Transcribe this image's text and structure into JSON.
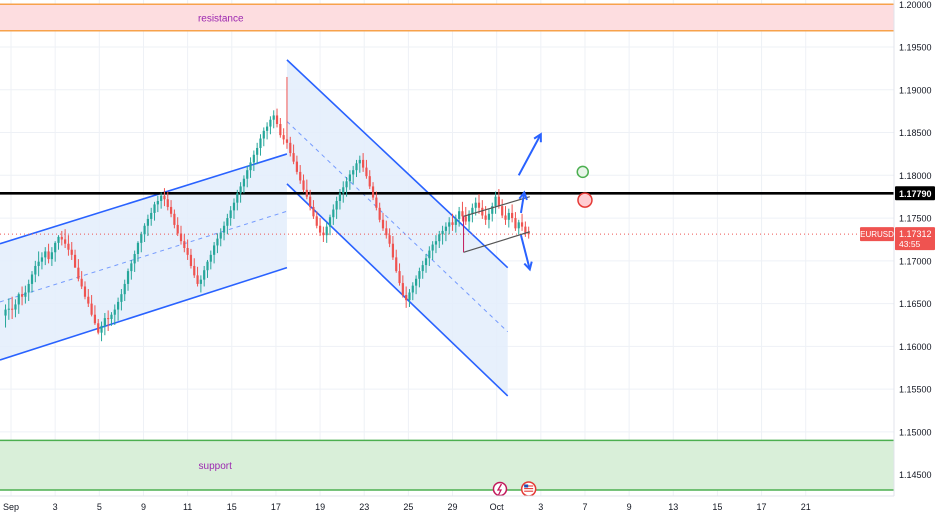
{
  "chart_data": {
    "type": "candlestick",
    "symbol": "EURUSD",
    "last_price": "1.17312",
    "countdown": "43:55",
    "level_label": "1.17790",
    "level": 1.1779,
    "ylim": [
      1.1425,
      1.2005
    ],
    "xlim": [
      -1.0,
      80.0
    ],
    "y_ticks": [
      "1.14500",
      "1.15000",
      "1.15500",
      "1.16000",
      "1.16500",
      "1.17000",
      "1.17500",
      "1.18000",
      "1.18500",
      "1.19000",
      "1.19500",
      "1.20000"
    ],
    "x_ticks": [
      {
        "label": "Sep",
        "x": 0.0
      },
      {
        "label": "3",
        "x": 4.0
      },
      {
        "label": "5",
        "x": 8.0
      },
      {
        "label": "9",
        "x": 12.0
      },
      {
        "label": "11",
        "x": 16.0
      },
      {
        "label": "15",
        "x": 20.0
      },
      {
        "label": "17",
        "x": 24.0
      },
      {
        "label": "19",
        "x": 28.0
      },
      {
        "label": "23",
        "x": 32.0
      },
      {
        "label": "25",
        "x": 36.0
      },
      {
        "label": "29",
        "x": 40.0
      },
      {
        "label": "Oct",
        "x": 44.0
      },
      {
        "label": "3",
        "x": 48.0
      },
      {
        "label": "7",
        "x": 52.0
      },
      {
        "label": "9",
        "x": 56.0
      },
      {
        "label": "13",
        "x": 60.0
      },
      {
        "label": "15",
        "x": 64.0
      },
      {
        "label": "17",
        "x": 68.0
      },
      {
        "label": "21",
        "x": 72.0
      }
    ],
    "zones": [
      {
        "label": "resistance",
        "from": 1.1969,
        "to": 1.2,
        "fill": "#fddde0",
        "border": "#f7a24b"
      },
      {
        "label": "support",
        "from": 1.1432,
        "to": 1.149,
        "fill": "#d9efd9",
        "border": "#4caf50"
      }
    ],
    "candles": [
      [
        -0.5,
        1.1636,
        1.1649,
        1.1622,
        1.1643
      ],
      [
        -0.2,
        1.1643,
        1.1656,
        1.1631,
        1.1644
      ],
      [
        0.1,
        1.1644,
        1.1658,
        1.1632,
        1.1643
      ],
      [
        0.4,
        1.1643,
        1.1655,
        1.1634,
        1.1649
      ],
      [
        0.7,
        1.1649,
        1.1663,
        1.1638,
        1.1661
      ],
      [
        1.0,
        1.1661,
        1.167,
        1.1648,
        1.1658
      ],
      [
        1.3,
        1.1658,
        1.1671,
        1.165,
        1.1663
      ],
      [
        1.6,
        1.1663,
        1.1678,
        1.1653,
        1.1673
      ],
      [
        1.9,
        1.1673,
        1.1688,
        1.1663,
        1.1684
      ],
      [
        2.2,
        1.1684,
        1.17,
        1.1675,
        1.1694
      ],
      [
        2.5,
        1.1694,
        1.1711,
        1.1682,
        1.1699
      ],
      [
        2.8,
        1.1699,
        1.171,
        1.169,
        1.1704
      ],
      [
        3.1,
        1.1704,
        1.1716,
        1.1695,
        1.1711
      ],
      [
        3.4,
        1.1711,
        1.172,
        1.1697,
        1.1702
      ],
      [
        3.7,
        1.1702,
        1.1716,
        1.1694,
        1.171
      ],
      [
        4.0,
        1.171,
        1.1723,
        1.1699,
        1.1721
      ],
      [
        4.3,
        1.1721,
        1.173,
        1.1713,
        1.1728
      ],
      [
        4.6,
        1.1728,
        1.1735,
        1.1718,
        1.1725
      ],
      [
        4.9,
        1.1725,
        1.1737,
        1.1715,
        1.172
      ],
      [
        5.2,
        1.172,
        1.173,
        1.1706,
        1.1713
      ],
      [
        5.5,
        1.1713,
        1.1722,
        1.1701,
        1.1707
      ],
      [
        5.8,
        1.1707,
        1.1713,
        1.1692,
        1.1692
      ],
      [
        6.1,
        1.1692,
        1.1702,
        1.1676,
        1.1679
      ],
      [
        6.4,
        1.1679,
        1.1688,
        1.1667,
        1.167
      ],
      [
        6.7,
        1.167,
        1.1676,
        1.1655,
        1.1658
      ],
      [
        7.0,
        1.1658,
        1.1667,
        1.1646,
        1.165
      ],
      [
        7.3,
        1.165,
        1.166,
        1.1635,
        1.1637
      ],
      [
        7.6,
        1.1637,
        1.1648,
        1.1625,
        1.1627
      ],
      [
        7.9,
        1.1627,
        1.1632,
        1.1614,
        1.1616
      ],
      [
        8.2,
        1.1616,
        1.1629,
        1.1606,
        1.1624
      ],
      [
        8.5,
        1.1624,
        1.1639,
        1.1613,
        1.1633
      ],
      [
        8.8,
        1.1633,
        1.1642,
        1.1618,
        1.1632
      ],
      [
        9.1,
        1.1632,
        1.164,
        1.1624,
        1.1637
      ],
      [
        9.4,
        1.1637,
        1.1649,
        1.1625,
        1.1643
      ],
      [
        9.7,
        1.1643,
        1.1657,
        1.163,
        1.1652
      ],
      [
        10.0,
        1.1652,
        1.1667,
        1.1642,
        1.1661
      ],
      [
        10.3,
        1.1661,
        1.1678,
        1.1653,
        1.1673
      ],
      [
        10.6,
        1.1673,
        1.1691,
        1.1665,
        1.1688
      ],
      [
        10.9,
        1.1688,
        1.1701,
        1.1678,
        1.1697
      ],
      [
        11.2,
        1.1697,
        1.1712,
        1.1687,
        1.1708
      ],
      [
        11.5,
        1.1708,
        1.1723,
        1.1699,
        1.1721
      ],
      [
        11.8,
        1.1721,
        1.1734,
        1.171,
        1.1731
      ],
      [
        12.1,
        1.1731,
        1.1744,
        1.1722,
        1.1741
      ],
      [
        12.4,
        1.1741,
        1.1754,
        1.1729,
        1.1749
      ],
      [
        12.7,
        1.1749,
        1.1762,
        1.1741,
        1.1756
      ],
      [
        13.0,
        1.1756,
        1.1769,
        1.1747,
        1.1766
      ],
      [
        13.3,
        1.1766,
        1.1776,
        1.1757,
        1.177
      ],
      [
        13.6,
        1.177,
        1.178,
        1.1761,
        1.1776
      ],
      [
        13.9,
        1.1776,
        1.1785,
        1.1764,
        1.1772
      ],
      [
        14.2,
        1.1772,
        1.1781,
        1.1759,
        1.1763
      ],
      [
        14.5,
        1.1763,
        1.1771,
        1.1751,
        1.1755
      ],
      [
        14.8,
        1.1755,
        1.176,
        1.1738,
        1.1742
      ],
      [
        15.1,
        1.1742,
        1.1751,
        1.1729,
        1.1732
      ],
      [
        15.4,
        1.1732,
        1.1741,
        1.1719,
        1.1723
      ],
      [
        15.7,
        1.1723,
        1.1731,
        1.171,
        1.1715
      ],
      [
        16.0,
        1.1715,
        1.1725,
        1.1701,
        1.1707
      ],
      [
        16.3,
        1.1707,
        1.1714,
        1.1691,
        1.1694
      ],
      [
        16.6,
        1.1694,
        1.1703,
        1.168,
        1.1683
      ],
      [
        16.9,
        1.1683,
        1.1693,
        1.167,
        1.1673
      ],
      [
        17.2,
        1.1673,
        1.1683,
        1.1663,
        1.1678
      ],
      [
        17.5,
        1.1678,
        1.1694,
        1.167,
        1.1689
      ],
      [
        17.8,
        1.1689,
        1.1701,
        1.168,
        1.1699
      ],
      [
        18.1,
        1.1699,
        1.1712,
        1.169,
        1.1707
      ],
      [
        18.4,
        1.1707,
        1.1722,
        1.1697,
        1.1718
      ],
      [
        18.7,
        1.1718,
        1.1732,
        1.1709,
        1.1726
      ],
      [
        19.0,
        1.1726,
        1.1738,
        1.1717,
        1.1733
      ],
      [
        19.3,
        1.1733,
        1.1746,
        1.1724,
        1.1741
      ],
      [
        19.6,
        1.1741,
        1.1755,
        1.1731,
        1.175
      ],
      [
        19.9,
        1.175,
        1.1764,
        1.1741,
        1.1759
      ],
      [
        20.2,
        1.1759,
        1.1773,
        1.1749,
        1.1768
      ],
      [
        20.5,
        1.1768,
        1.1783,
        1.1759,
        1.1779
      ],
      [
        20.8,
        1.1779,
        1.1792,
        1.1768,
        1.1787
      ],
      [
        21.1,
        1.1787,
        1.18,
        1.1779,
        1.1796
      ],
      [
        21.4,
        1.1796,
        1.1811,
        1.1786,
        1.1806
      ],
      [
        21.7,
        1.1806,
        1.1821,
        1.1797,
        1.1815
      ],
      [
        22.0,
        1.1815,
        1.1829,
        1.1805,
        1.1824
      ],
      [
        22.3,
        1.1824,
        1.1838,
        1.1813,
        1.1832
      ],
      [
        22.6,
        1.1832,
        1.1848,
        1.1823,
        1.1843
      ],
      [
        22.9,
        1.1843,
        1.1856,
        1.1834,
        1.1852
      ],
      [
        23.2,
        1.1852,
        1.1862,
        1.1842,
        1.1857
      ],
      [
        23.5,
        1.1857,
        1.1869,
        1.1848,
        1.1865
      ],
      [
        23.8,
        1.1865,
        1.1876,
        1.1855,
        1.187
      ],
      [
        24.1,
        1.187,
        1.1878,
        1.1856,
        1.186
      ],
      [
        24.4,
        1.186,
        1.1867,
        1.1844,
        1.1847
      ],
      [
        24.7,
        1.1847,
        1.1855,
        1.1836,
        1.1842
      ],
      [
        25.0,
        1.1842,
        1.1915,
        1.1831,
        1.1838
      ],
      [
        25.3,
        1.1838,
        1.1845,
        1.1822,
        1.1826
      ],
      [
        25.6,
        1.1826,
        1.1836,
        1.1813,
        1.1816
      ],
      [
        25.9,
        1.1816,
        1.1823,
        1.1801,
        1.1804
      ],
      [
        26.2,
        1.1804,
        1.1812,
        1.179,
        1.1794
      ],
      [
        26.5,
        1.1794,
        1.1801,
        1.178,
        1.1783
      ],
      [
        26.8,
        1.1783,
        1.1795,
        1.1772,
        1.1775
      ],
      [
        27.1,
        1.1775,
        1.1783,
        1.1759,
        1.1763
      ],
      [
        27.4,
        1.1763,
        1.1771,
        1.1749,
        1.1752
      ],
      [
        27.7,
        1.1752,
        1.1758,
        1.1738,
        1.1741
      ],
      [
        28.0,
        1.1741,
        1.175,
        1.1729,
        1.1733
      ],
      [
        28.3,
        1.1733,
        1.174,
        1.1722,
        1.173
      ],
      [
        28.6,
        1.173,
        1.1745,
        1.1721,
        1.174
      ],
      [
        28.9,
        1.174,
        1.1754,
        1.173,
        1.1751
      ],
      [
        29.2,
        1.1751,
        1.1766,
        1.1742,
        1.176
      ],
      [
        29.5,
        1.176,
        1.1775,
        1.1749,
        1.177
      ],
      [
        29.8,
        1.177,
        1.1784,
        1.176,
        1.1779
      ],
      [
        30.1,
        1.1779,
        1.1793,
        1.1768,
        1.1786
      ],
      [
        30.4,
        1.1786,
        1.1798,
        1.1775,
        1.1793
      ],
      [
        30.7,
        1.1793,
        1.1806,
        1.1783,
        1.1801
      ],
      [
        31.0,
        1.1801,
        1.1811,
        1.179,
        1.1806
      ],
      [
        31.3,
        1.1806,
        1.1818,
        1.1798,
        1.1814
      ],
      [
        31.6,
        1.1814,
        1.1823,
        1.1803,
        1.1818
      ],
      [
        31.9,
        1.1818,
        1.1826,
        1.1804,
        1.1809
      ],
      [
        32.2,
        1.1809,
        1.1818,
        1.1796,
        1.1799
      ],
      [
        32.5,
        1.1799,
        1.1806,
        1.1784,
        1.1787
      ],
      [
        32.8,
        1.1787,
        1.1792,
        1.1771,
        1.1774
      ],
      [
        33.1,
        1.1774,
        1.1781,
        1.1759,
        1.1762
      ],
      [
        33.4,
        1.1762,
        1.1768,
        1.1745,
        1.1748
      ],
      [
        33.7,
        1.1748,
        1.1756,
        1.1735,
        1.1738
      ],
      [
        34.0,
        1.1738,
        1.1747,
        1.1726,
        1.173
      ],
      [
        34.3,
        1.173,
        1.1738,
        1.1716,
        1.172
      ],
      [
        34.6,
        1.172,
        1.1729,
        1.1701,
        1.1704
      ],
      [
        34.9,
        1.1704,
        1.1713,
        1.1686,
        1.1688
      ],
      [
        35.2,
        1.1688,
        1.1697,
        1.1671,
        1.1674
      ],
      [
        35.5,
        1.1674,
        1.1683,
        1.1657,
        1.166
      ],
      [
        35.8,
        1.166,
        1.167,
        1.1645,
        1.1654
      ],
      [
        36.1,
        1.1654,
        1.1667,
        1.1646,
        1.1663
      ],
      [
        36.4,
        1.1663,
        1.1675,
        1.1654,
        1.1671
      ],
      [
        36.7,
        1.1671,
        1.1683,
        1.1661,
        1.1679
      ],
      [
        37.0,
        1.1679,
        1.1692,
        1.1669,
        1.1688
      ],
      [
        37.3,
        1.1688,
        1.17,
        1.1679,
        1.1695
      ],
      [
        37.6,
        1.1695,
        1.1708,
        1.1686,
        1.1703
      ],
      [
        37.9,
        1.1703,
        1.1717,
        1.1694,
        1.1712
      ],
      [
        38.2,
        1.1712,
        1.1723,
        1.1701,
        1.1719
      ],
      [
        38.5,
        1.1719,
        1.173,
        1.1709,
        1.1723
      ],
      [
        38.8,
        1.1723,
        1.1735,
        1.1715,
        1.1731
      ],
      [
        39.1,
        1.1731,
        1.1741,
        1.1719,
        1.1735
      ],
      [
        39.4,
        1.1735,
        1.1745,
        1.1723,
        1.174
      ],
      [
        39.7,
        1.174,
        1.1751,
        1.1731,
        1.1745
      ],
      [
        40.0,
        1.1745,
        1.1755,
        1.1735,
        1.1742
      ],
      [
        40.3,
        1.1742,
        1.1754,
        1.1733,
        1.1749
      ],
      [
        40.6,
        1.1749,
        1.1763,
        1.174,
        1.1758
      ],
      [
        40.9,
        1.1758,
        1.1769,
        1.1746,
        1.1752
      ],
      [
        41.2,
        1.1752,
        1.1763,
        1.1742,
        1.1746
      ],
      [
        41.5,
        1.1746,
        1.1759,
        1.1736,
        1.1755
      ],
      [
        41.8,
        1.1755,
        1.1767,
        1.1745,
        1.1762
      ],
      [
        42.1,
        1.1762,
        1.1774,
        1.1753,
        1.1768
      ],
      [
        42.4,
        1.1768,
        1.1778,
        1.1755,
        1.1762
      ],
      [
        42.7,
        1.1762,
        1.1771,
        1.1749,
        1.1753
      ],
      [
        43.0,
        1.1753,
        1.1764,
        1.1742,
        1.1748
      ],
      [
        43.3,
        1.1748,
        1.176,
        1.1738,
        1.1755
      ],
      [
        43.6,
        1.1755,
        1.1768,
        1.1746,
        1.1764
      ],
      [
        43.9,
        1.1764,
        1.1781,
        1.1755,
        1.1775
      ],
      [
        44.2,
        1.1775,
        1.1784,
        1.1761,
        1.1764
      ],
      [
        44.5,
        1.1764,
        1.1772,
        1.175,
        1.1753
      ],
      [
        44.8,
        1.1753,
        1.1764,
        1.1742,
        1.1748
      ],
      [
        45.1,
        1.1748,
        1.1761,
        1.1739,
        1.1756
      ],
      [
        45.4,
        1.1756,
        1.1766,
        1.1745,
        1.175
      ],
      [
        45.7,
        1.175,
        1.1757,
        1.1735,
        1.1738
      ],
      [
        46.0,
        1.1738,
        1.1748,
        1.1731,
        1.1745
      ],
      [
        46.3,
        1.1745,
        1.1755,
        1.1735,
        1.174
      ],
      [
        46.6,
        1.174,
        1.1746,
        1.1728,
        1.1733
      ],
      [
        46.9,
        1.1733,
        1.174,
        1.1726,
        1.1731
      ]
    ],
    "channels": [
      {
        "name": "ascending",
        "x0": -1.0,
        "x1": 25.0,
        "upper": [
          1.172,
          1.1825
        ],
        "lower": [
          1.1584,
          1.1692
        ],
        "mid": [
          1.1652,
          1.1758
        ]
      },
      {
        "name": "descending",
        "x0": 25.0,
        "x1": 45.0,
        "upper": [
          1.1935,
          1.1692
        ],
        "lower": [
          1.179,
          1.1542
        ],
        "mid": [
          1.1863,
          1.1617
        ]
      }
    ],
    "flag": {
      "x0": 41.0,
      "x1": 47.0,
      "upper": [
        1.1752,
        1.1775
      ],
      "lower": [
        1.171,
        1.1734
      ]
    },
    "arrows": [
      {
        "name": "up-big",
        "from": [
          46.0,
          1.18
        ],
        "to": [
          48.0,
          1.1848
        ]
      },
      {
        "name": "up-small",
        "from": [
          46.2,
          1.1756
        ],
        "to": [
          46.5,
          1.178
        ]
      },
      {
        "name": "down",
        "from": [
          46.2,
          1.173
        ],
        "to": [
          47.0,
          1.169
        ]
      }
    ],
    "markers": [
      {
        "name": "green-target",
        "x": 51.8,
        "y": 1.1804,
        "color": "#4caf50",
        "fill": "#e8f5e9"
      },
      {
        "name": "red-stop",
        "x": 52.0,
        "y": 1.1771,
        "color": "#e53935",
        "fill": "#ffcdd2"
      }
    ],
    "colors": {
      "up": "#26a69a",
      "down": "#ef5350",
      "channel": "#2962ff",
      "channel_fill": "#e3edfb",
      "level": "#000000",
      "current": "#ef5350",
      "grid": "#eef1f6",
      "axis_text": "#131722",
      "zone_label": "#9c27b0",
      "flag": "#c2185b"
    }
  }
}
